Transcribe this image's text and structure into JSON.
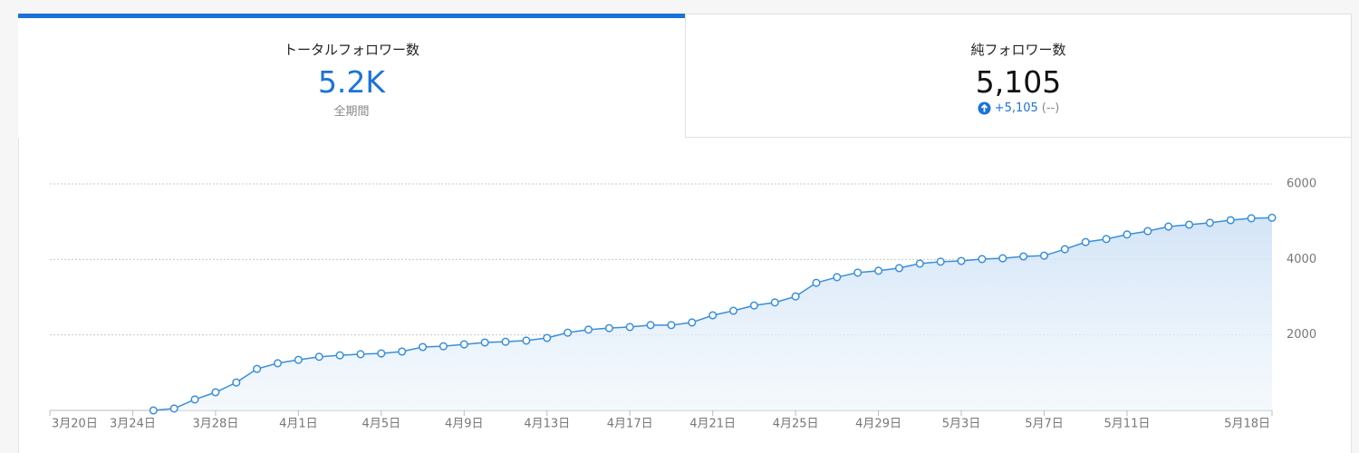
{
  "cards": [
    {
      "title": "トータルフォロワー数",
      "value": "5.2K",
      "sub": "全期間"
    },
    {
      "title": "純フォロワー数",
      "value": "5,105",
      "change": "+5,105",
      "change_note": "(--)"
    }
  ],
  "chart_data": {
    "type": "area",
    "categories": [
      "3月20日",
      null,
      null,
      null,
      "3月24日",
      null,
      null,
      null,
      "3月28日",
      null,
      null,
      null,
      "4月1日",
      null,
      null,
      null,
      "4月5日",
      null,
      null,
      null,
      "4月9日",
      null,
      null,
      null,
      "4月13日",
      null,
      null,
      null,
      "4月17日",
      null,
      null,
      null,
      "4月21日",
      null,
      null,
      null,
      "4月25日",
      null,
      null,
      null,
      "4月29日",
      null,
      null,
      null,
      "5月3日",
      null,
      null,
      null,
      "5月7日",
      null,
      null,
      null,
      "5月11日",
      null,
      null,
      null,
      null,
      null,
      null,
      "5月18日"
    ],
    "values": [
      null,
      null,
      null,
      null,
      null,
      0,
      50,
      290,
      480,
      740,
      1100,
      1250,
      1340,
      1420,
      1460,
      1490,
      1510,
      1560,
      1680,
      1700,
      1750,
      1800,
      1820,
      1850,
      1920,
      2060,
      2140,
      2180,
      2210,
      2260,
      2260,
      2330,
      2520,
      2640,
      2780,
      2860,
      3020,
      3380,
      3530,
      3650,
      3700,
      3770,
      3890,
      3940,
      3960,
      4010,
      4030,
      4080,
      4100,
      4270,
      4460,
      4540,
      4660,
      4750,
      4870,
      4920,
      4970,
      5040,
      5090,
      5105
    ],
    "color": "#3a8fd9",
    "ylim": [
      0,
      6000
    ],
    "yticks": [
      2000,
      4000,
      6000
    ],
    "grid": true
  }
}
